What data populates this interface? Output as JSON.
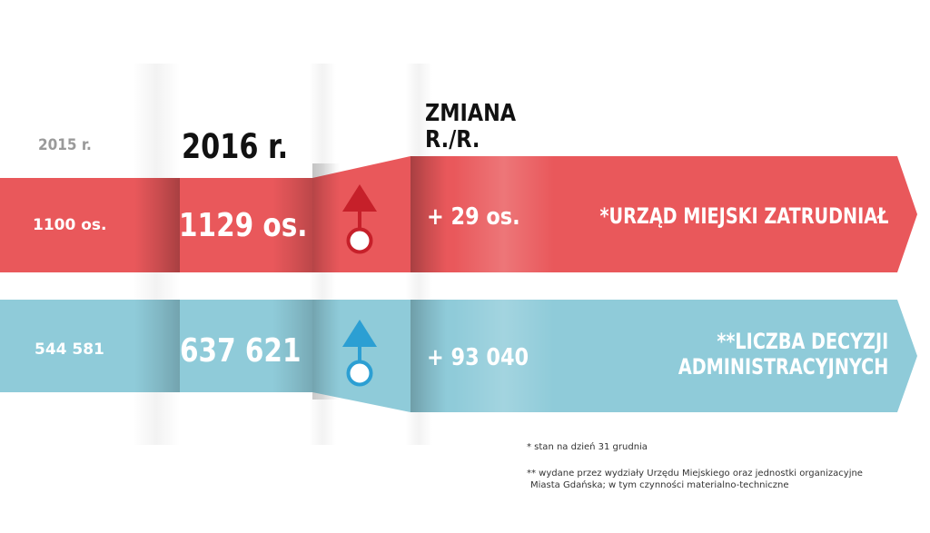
{
  "headers": {
    "year_prev": "2015 r.",
    "year_curr": "2016 r.",
    "change_line1": "ZMIANA",
    "change_line2": "R./R."
  },
  "rows": [
    {
      "value_prev": "1100 os.",
      "value_curr": "1129 os.",
      "change": "+ 29 os.",
      "label_lines": [
        "*URZĄD MIEJSKI ZATRUDNIAŁ"
      ],
      "color": "#e9585b",
      "direction": "up",
      "icon": "arrow-up-circle-icon"
    },
    {
      "value_prev": "544 581",
      "value_curr": "637 621",
      "change": "+ 93 040",
      "label_lines": [
        "**LICZBA DECYZJI",
        "ADMINISTRACYJNYCH"
      ],
      "color": "#8fcbd9",
      "direction": "up",
      "icon": "arrow-up-circle-icon"
    }
  ],
  "icon_colors": {
    "row1": "#c6202a",
    "row2": "#2c9fd3"
  },
  "footnotes": {
    "note1": "* stan na dzień 31 grudnia",
    "note2_line1": "** wydane przez wydziały Urzędu Miejskiego oraz jednostki organizacyjne",
    "note2_line2": "Miasta Gdańska; w tym czynności materialno-techniczne"
  }
}
